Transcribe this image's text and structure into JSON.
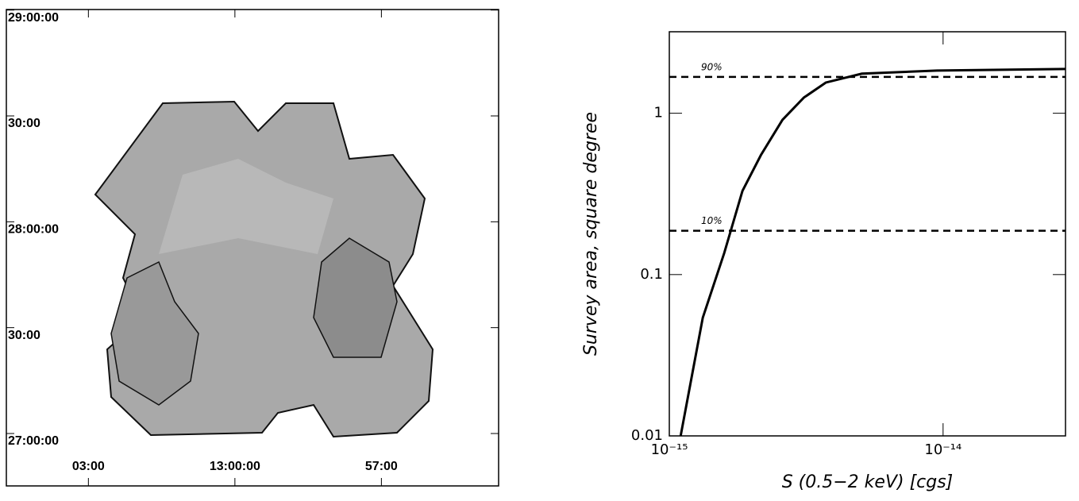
{
  "chart_data": [
    {
      "type": "image",
      "xlim": [
        13.078,
        12.91
      ],
      "ylim": [
        26.79,
        29.04
      ],
      "xticks": [
        {
          "value": 13.05,
          "label": "03:00"
        },
        {
          "value": 13.0,
          "label": "13:00:00"
        },
        {
          "value": 12.95,
          "label": "57:00"
        }
      ],
      "yticks": [
        {
          "value": 29.0,
          "label": "29:00:00"
        },
        {
          "value": 28.5,
          "label": "30:00"
        },
        {
          "value": 28.0,
          "label": "28:00:00"
        },
        {
          "value": 27.5,
          "label": "30:00"
        },
        {
          "value": 27.0,
          "label": "27:00:00"
        }
      ]
    },
    {
      "type": "line",
      "xlabel": "S (0.5−2 keV) [cgs]",
      "ylabel": "Survey area, square degree",
      "log_x": true,
      "log_y": true,
      "xlim": [
        1e-15,
        2.8e-14
      ],
      "ylim": [
        0.01,
        3.2
      ],
      "xticks": [
        {
          "value": 1e-15,
          "label": "10⁻¹⁵"
        },
        {
          "value": 1e-14,
          "label": "10⁻¹⁴"
        }
      ],
      "yticks": [
        0.01,
        0.1,
        1
      ],
      "reference_lines": [
        {
          "value": 1.68,
          "label": "90%"
        },
        {
          "value": 0.187,
          "label": "10%"
        }
      ],
      "x": [
        1.1e-15,
        1.325e-15,
        1.587e-15,
        1.85e-15,
        2.16e-15,
        2.59e-15,
        3.1e-15,
        3.73e-15,
        5.05e-15,
        9.5e-15,
        2.8e-14
      ],
      "series": [
        {
          "color": "#000000",
          "values": [
            0.01,
            0.054,
            0.136,
            0.33,
            0.55,
            0.91,
            1.25,
            1.55,
            1.76,
            1.84,
            1.88
          ]
        }
      ]
    }
  ]
}
